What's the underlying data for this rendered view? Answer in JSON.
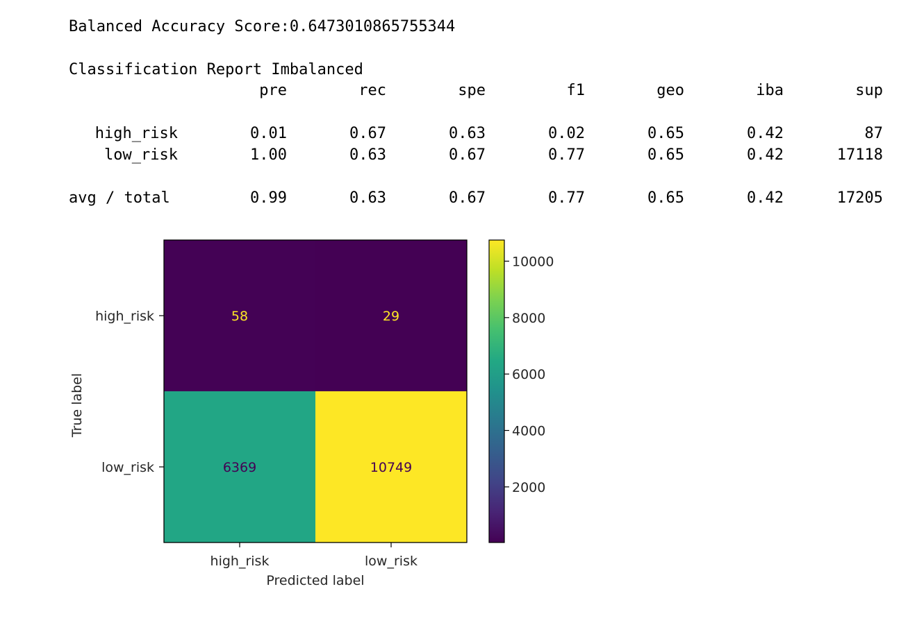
{
  "score_line": "Balanced Accuracy Score:0.6473010865755344",
  "report_title": "Classification Report Imbalanced",
  "report": {
    "headers": [
      "pre",
      "rec",
      "spe",
      "f1",
      "geo",
      "iba",
      "sup"
    ],
    "rows": [
      {
        "label": "high_risk",
        "values": [
          "0.01",
          "0.67",
          "0.63",
          "0.02",
          "0.65",
          "0.42",
          "87"
        ]
      },
      {
        "label": "low_risk",
        "values": [
          "1.00",
          "0.63",
          "0.67",
          "0.77",
          "0.65",
          "0.42",
          "17118"
        ]
      }
    ],
    "total": {
      "label": "avg / total",
      "values": [
        "0.99",
        "0.63",
        "0.67",
        "0.77",
        "0.65",
        "0.42",
        "17205"
      ]
    }
  },
  "chart_data": {
    "type": "heatmap",
    "x_categories": [
      "high_risk",
      "low_risk"
    ],
    "y_categories": [
      "high_risk",
      "low_risk"
    ],
    "values": [
      [
        58,
        29
      ],
      [
        6369,
        10749
      ]
    ],
    "xlabel": "Predicted label",
    "ylabel": "True label",
    "colormap": "viridis",
    "colorbar": {
      "min": 29,
      "max": 10749,
      "ticks": [
        2000,
        4000,
        6000,
        8000,
        10000
      ]
    },
    "dark_text_color": "#440154",
    "light_text_color": "#fde725"
  }
}
